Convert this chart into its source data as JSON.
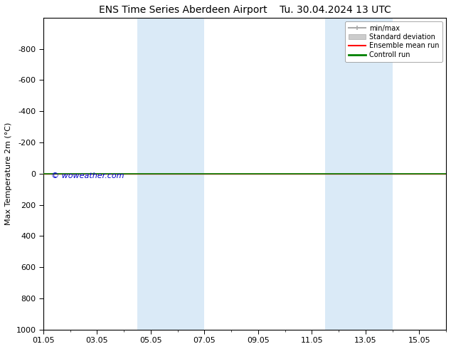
{
  "title1": "ENS Time Series Aberdeen Airport",
  "title2": "Tu. 30.04.2024 13 UTC",
  "ylabel": "Max Temperature 2m (°C)",
  "ylim": [
    -1000,
    1000
  ],
  "yticks": [
    -800,
    -600,
    -400,
    -200,
    0,
    200,
    400,
    600,
    800,
    1000
  ],
  "xtick_labels": [
    "01.05",
    "03.05",
    "05.05",
    "07.05",
    "09.05",
    "11.05",
    "13.05",
    "15.05"
  ],
  "xtick_positions": [
    0,
    2,
    4,
    6,
    8,
    10,
    12,
    14
  ],
  "xlim": [
    0,
    15
  ],
  "blue_bands": [
    [
      3.5,
      5.0
    ],
    [
      5.0,
      6.0
    ],
    [
      10.5,
      12.0
    ],
    [
      12.0,
      13.0
    ]
  ],
  "band_color": "#daeaf7",
  "line_y": 0,
  "ensemble_mean_color": "#ff0000",
  "control_run_color": "#008000",
  "watermark": "© woweather.com",
  "watermark_color": "#0000cc",
  "legend_items": [
    {
      "label": "min/max",
      "color": "#aaaaaa",
      "lw": 1.5
    },
    {
      "label": "Standard deviation",
      "color": "#cccccc",
      "lw": 6
    },
    {
      "label": "Ensemble mean run",
      "color": "#ff0000",
      "lw": 1.5
    },
    {
      "label": "Controll run",
      "color": "#008000",
      "lw": 2
    }
  ],
  "bg_color": "#ffffff",
  "plot_bg_color": "#ffffff",
  "title_fontsize": 10,
  "axis_fontsize": 8,
  "tick_fontsize": 8
}
